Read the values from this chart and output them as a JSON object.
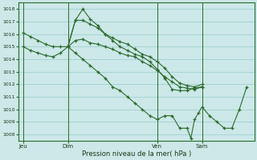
{
  "title": "",
  "xlabel": "Pression niveau de la mer( hPa )",
  "background_color": "#cce8e8",
  "grid_color": "#99cccc",
  "line_color": "#2d6a2d",
  "ylim": [
    1007.5,
    1018.5
  ],
  "yticks": [
    1008,
    1009,
    1010,
    1011,
    1012,
    1013,
    1014,
    1015,
    1016,
    1017,
    1018
  ],
  "xtick_labels": [
    "Jeu",
    "Dim",
    "Ven",
    "Sam"
  ],
  "xtick_positions": [
    0,
    3,
    9,
    12
  ],
  "vline_positions": [
    0,
    3,
    9,
    12
  ],
  "line1": [
    [
      0,
      1016.1
    ],
    [
      0.5,
      1015.8
    ],
    [
      1.0,
      1015.5
    ],
    [
      1.5,
      1015.2
    ],
    [
      2.0,
      1015.0
    ],
    [
      2.5,
      1015.0
    ],
    [
      3.0,
      1015.0
    ],
    [
      3.5,
      1015.5
    ],
    [
      4.0,
      1015.6
    ],
    [
      4.5,
      1015.3
    ],
    [
      5.0,
      1015.2
    ],
    [
      5.5,
      1015.0
    ],
    [
      6.0,
      1014.8
    ],
    [
      6.5,
      1014.5
    ],
    [
      7.0,
      1014.3
    ],
    [
      7.5,
      1014.2
    ],
    [
      8.0,
      1013.8
    ],
    [
      8.5,
      1013.5
    ],
    [
      9.0,
      1013.1
    ],
    [
      9.5,
      1012.6
    ],
    [
      10.0,
      1012.2
    ],
    [
      10.5,
      1011.8
    ],
    [
      11.0,
      1011.7
    ],
    [
      11.5,
      1011.6
    ],
    [
      12.0,
      1011.8
    ]
  ],
  "line2": [
    [
      0,
      1015.0
    ],
    [
      0.5,
      1014.7
    ],
    [
      1.0,
      1014.5
    ],
    [
      1.5,
      1014.3
    ],
    [
      2.0,
      1014.2
    ],
    [
      2.5,
      1014.5
    ],
    [
      3.0,
      1015.0
    ],
    [
      3.5,
      1017.1
    ],
    [
      4.0,
      1017.1
    ],
    [
      4.5,
      1016.8
    ],
    [
      5.0,
      1016.5
    ],
    [
      5.5,
      1016.0
    ],
    [
      6.0,
      1015.7
    ],
    [
      6.5,
      1015.4
    ],
    [
      7.0,
      1015.2
    ],
    [
      7.5,
      1014.8
    ],
    [
      8.0,
      1014.4
    ],
    [
      8.5,
      1014.2
    ],
    [
      9.0,
      1013.8
    ],
    [
      9.5,
      1013.3
    ],
    [
      10.0,
      1012.6
    ],
    [
      10.5,
      1012.1
    ],
    [
      11.0,
      1011.9
    ],
    [
      11.5,
      1011.8
    ],
    [
      12.0,
      1012.0
    ]
  ],
  "line3": [
    [
      3.0,
      1015.0
    ],
    [
      3.5,
      1017.1
    ],
    [
      4.0,
      1018.0
    ],
    [
      4.5,
      1017.2
    ],
    [
      5.0,
      1016.7
    ],
    [
      5.5,
      1016.0
    ],
    [
      6.0,
      1015.5
    ],
    [
      6.5,
      1015.0
    ],
    [
      7.0,
      1014.7
    ],
    [
      7.5,
      1014.4
    ],
    [
      8.0,
      1014.2
    ],
    [
      8.5,
      1013.8
    ],
    [
      9.0,
      1013.2
    ],
    [
      9.5,
      1012.5
    ],
    [
      10.0,
      1011.6
    ],
    [
      10.5,
      1011.5
    ],
    [
      11.0,
      1011.5
    ],
    [
      11.5,
      1011.7
    ],
    [
      12.0,
      1011.8
    ]
  ],
  "line4": [
    [
      3.0,
      1015.0
    ],
    [
      3.5,
      1014.5
    ],
    [
      4.0,
      1014.0
    ],
    [
      4.5,
      1013.5
    ],
    [
      5.0,
      1013.0
    ],
    [
      5.5,
      1012.5
    ],
    [
      6.0,
      1011.8
    ],
    [
      6.5,
      1011.5
    ],
    [
      7.0,
      1011.0
    ],
    [
      7.5,
      1010.5
    ],
    [
      8.0,
      1010.0
    ],
    [
      8.5,
      1009.5
    ],
    [
      9.0,
      1009.2
    ],
    [
      9.5,
      1009.5
    ],
    [
      10.0,
      1009.5
    ],
    [
      10.5,
      1008.5
    ],
    [
      11.0,
      1008.5
    ],
    [
      11.25,
      1007.7
    ],
    [
      11.5,
      1009.2
    ],
    [
      11.75,
      1009.7
    ],
    [
      12.0,
      1010.2
    ],
    [
      12.5,
      1009.5
    ],
    [
      13.0,
      1009.0
    ],
    [
      13.5,
      1008.5
    ],
    [
      14.0,
      1008.5
    ],
    [
      14.5,
      1010.0
    ],
    [
      15.0,
      1011.8
    ]
  ],
  "xlim": [
    -0.3,
    15.5
  ]
}
